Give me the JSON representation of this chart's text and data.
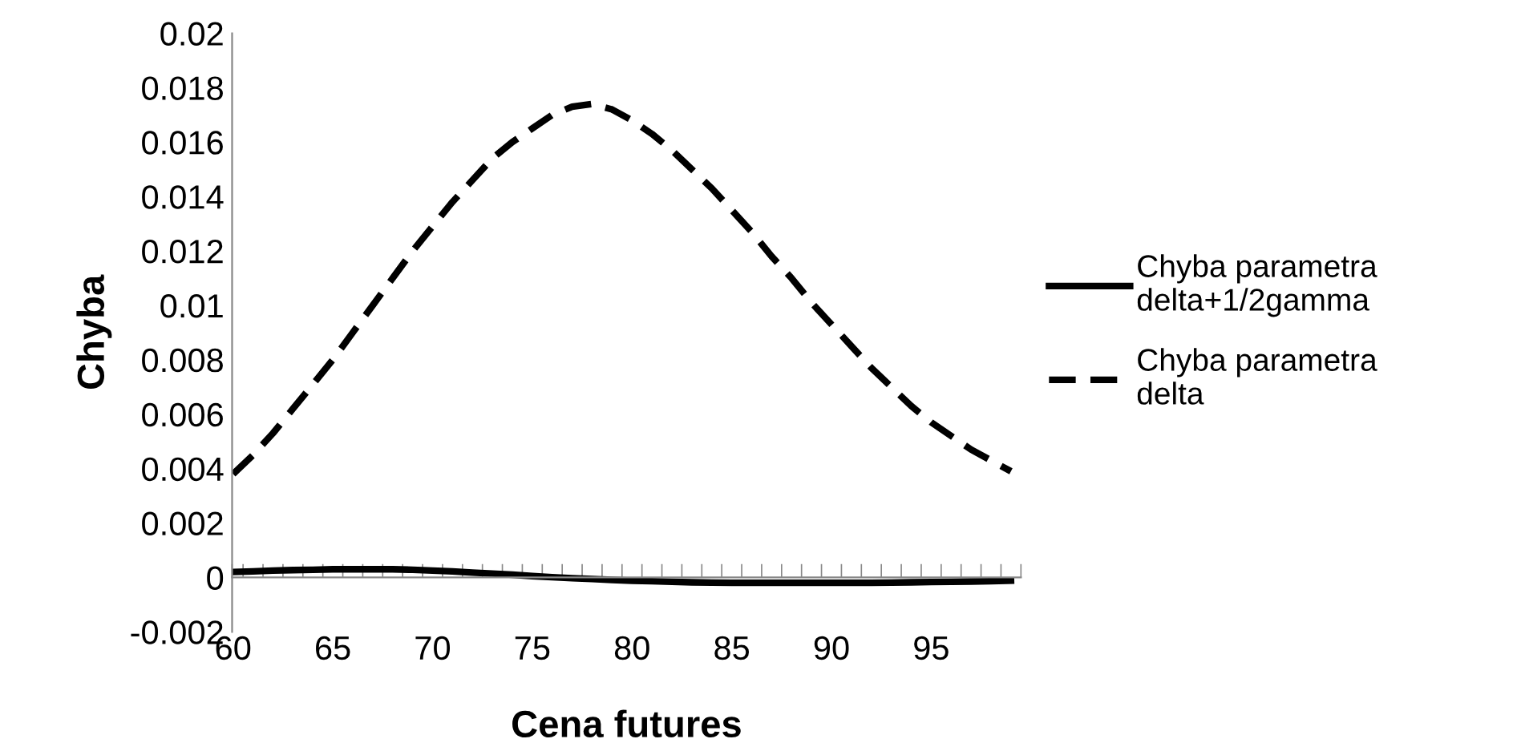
{
  "chart_data": {
    "type": "line",
    "xlabel": "Cena futures",
    "ylabel": "Chyba",
    "categories": [
      "60",
      null,
      null,
      null,
      null,
      "65",
      null,
      null,
      null,
      null,
      "70",
      null,
      null,
      null,
      null,
      "75",
      null,
      null,
      null,
      null,
      "80",
      null,
      null,
      null,
      null,
      "85",
      null,
      null,
      null,
      null,
      "90",
      null,
      null,
      null,
      null,
      "95",
      null,
      null,
      null,
      null
    ],
    "series": [
      {
        "name": "Chyba parametra delta+1/2gamma",
        "color": "#000000",
        "line_style": "solid",
        "values": [
          0.0002,
          0.00022,
          0.00025,
          0.00027,
          0.00028,
          0.0003,
          0.0003,
          0.0003,
          0.0003,
          0.00028,
          0.00025,
          0.00022,
          0.00018,
          0.00014,
          0.0001,
          5e-05,
          1e-05,
          -3e-05,
          -6e-05,
          -9e-05,
          -0.00012,
          -0.00014,
          -0.00016,
          -0.00018,
          -0.00019,
          -0.0002,
          -0.0002,
          -0.0002,
          -0.0002,
          -0.0002,
          -0.0002,
          -0.0002,
          -0.0002,
          -0.00019,
          -0.00018,
          -0.00017,
          -0.00016,
          -0.00015,
          -0.00014,
          -0.00012
        ]
      },
      {
        "name": "Chyba parametra delta",
        "color": "#000000",
        "line_style": "dashed",
        "values": [
          0.0038,
          0.0045,
          0.0053,
          0.0062,
          0.0071,
          0.008,
          0.009,
          0.01,
          0.011,
          0.012,
          0.0129,
          0.0138,
          0.0146,
          0.0154,
          0.016,
          0.0165,
          0.017,
          0.0173,
          0.0174,
          0.0172,
          0.0168,
          0.0163,
          0.0157,
          0.015,
          0.0143,
          0.0135,
          0.0127,
          0.0118,
          0.011,
          0.0101,
          0.0093,
          0.0085,
          0.0077,
          0.007,
          0.0063,
          0.0057,
          0.0052,
          0.0047,
          0.0043,
          0.0039
        ]
      }
    ],
    "ylim": [
      -0.002,
      0.02
    ],
    "yticks": [
      -0.002,
      0,
      0.002,
      0.004,
      0.006,
      0.008,
      0.01,
      0.012,
      0.014,
      0.016,
      0.018,
      0.02
    ],
    "grid": false,
    "legend": "right",
    "marker": "none"
  }
}
